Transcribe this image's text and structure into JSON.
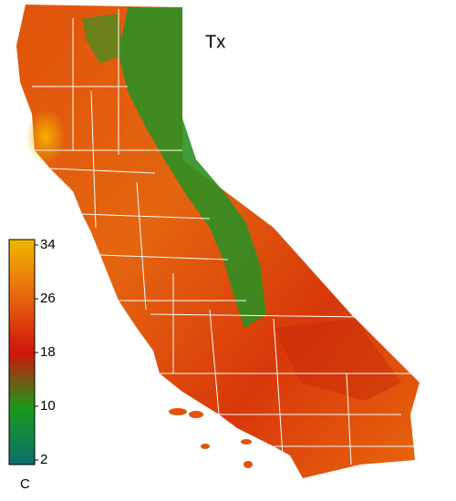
{
  "map": {
    "title": "Tx",
    "colorbar": {
      "unit": "C",
      "lim": [
        2,
        34
      ],
      "ticks": [
        34,
        26,
        18,
        10,
        2
      ]
    }
  }
}
